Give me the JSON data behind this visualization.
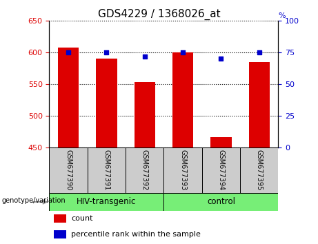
{
  "title": "GDS4229 / 1368026_at",
  "samples": [
    "GSM677390",
    "GSM677391",
    "GSM677392",
    "GSM677393",
    "GSM677394",
    "GSM677395"
  ],
  "count_values": [
    608,
    590,
    553,
    600,
    467,
    585
  ],
  "percentile_values": [
    75,
    75,
    72,
    75,
    70,
    75
  ],
  "ylim_left": [
    450,
    650
  ],
  "ylim_right": [
    0,
    100
  ],
  "yticks_left": [
    450,
    500,
    550,
    600,
    650
  ],
  "yticks_right": [
    0,
    25,
    50,
    75,
    100
  ],
  "bar_color": "#dd0000",
  "dot_color": "#0000cc",
  "groups": [
    {
      "label": "HIV-transgenic",
      "indices": [
        0,
        1,
        2
      ],
      "color": "#77ee77"
    },
    {
      "label": "control",
      "indices": [
        3,
        4,
        5
      ],
      "color": "#77ee77"
    }
  ],
  "legend_items": [
    {
      "label": "count",
      "color": "#dd0000"
    },
    {
      "label": "percentile rank within the sample",
      "color": "#0000cc"
    }
  ],
  "sample_box_color": "#cccccc",
  "group_label": "genotype/variation",
  "title_fontsize": 11,
  "tick_fontsize": 8,
  "sample_fontsize": 7,
  "group_fontsize": 8.5,
  "legend_fontsize": 8
}
